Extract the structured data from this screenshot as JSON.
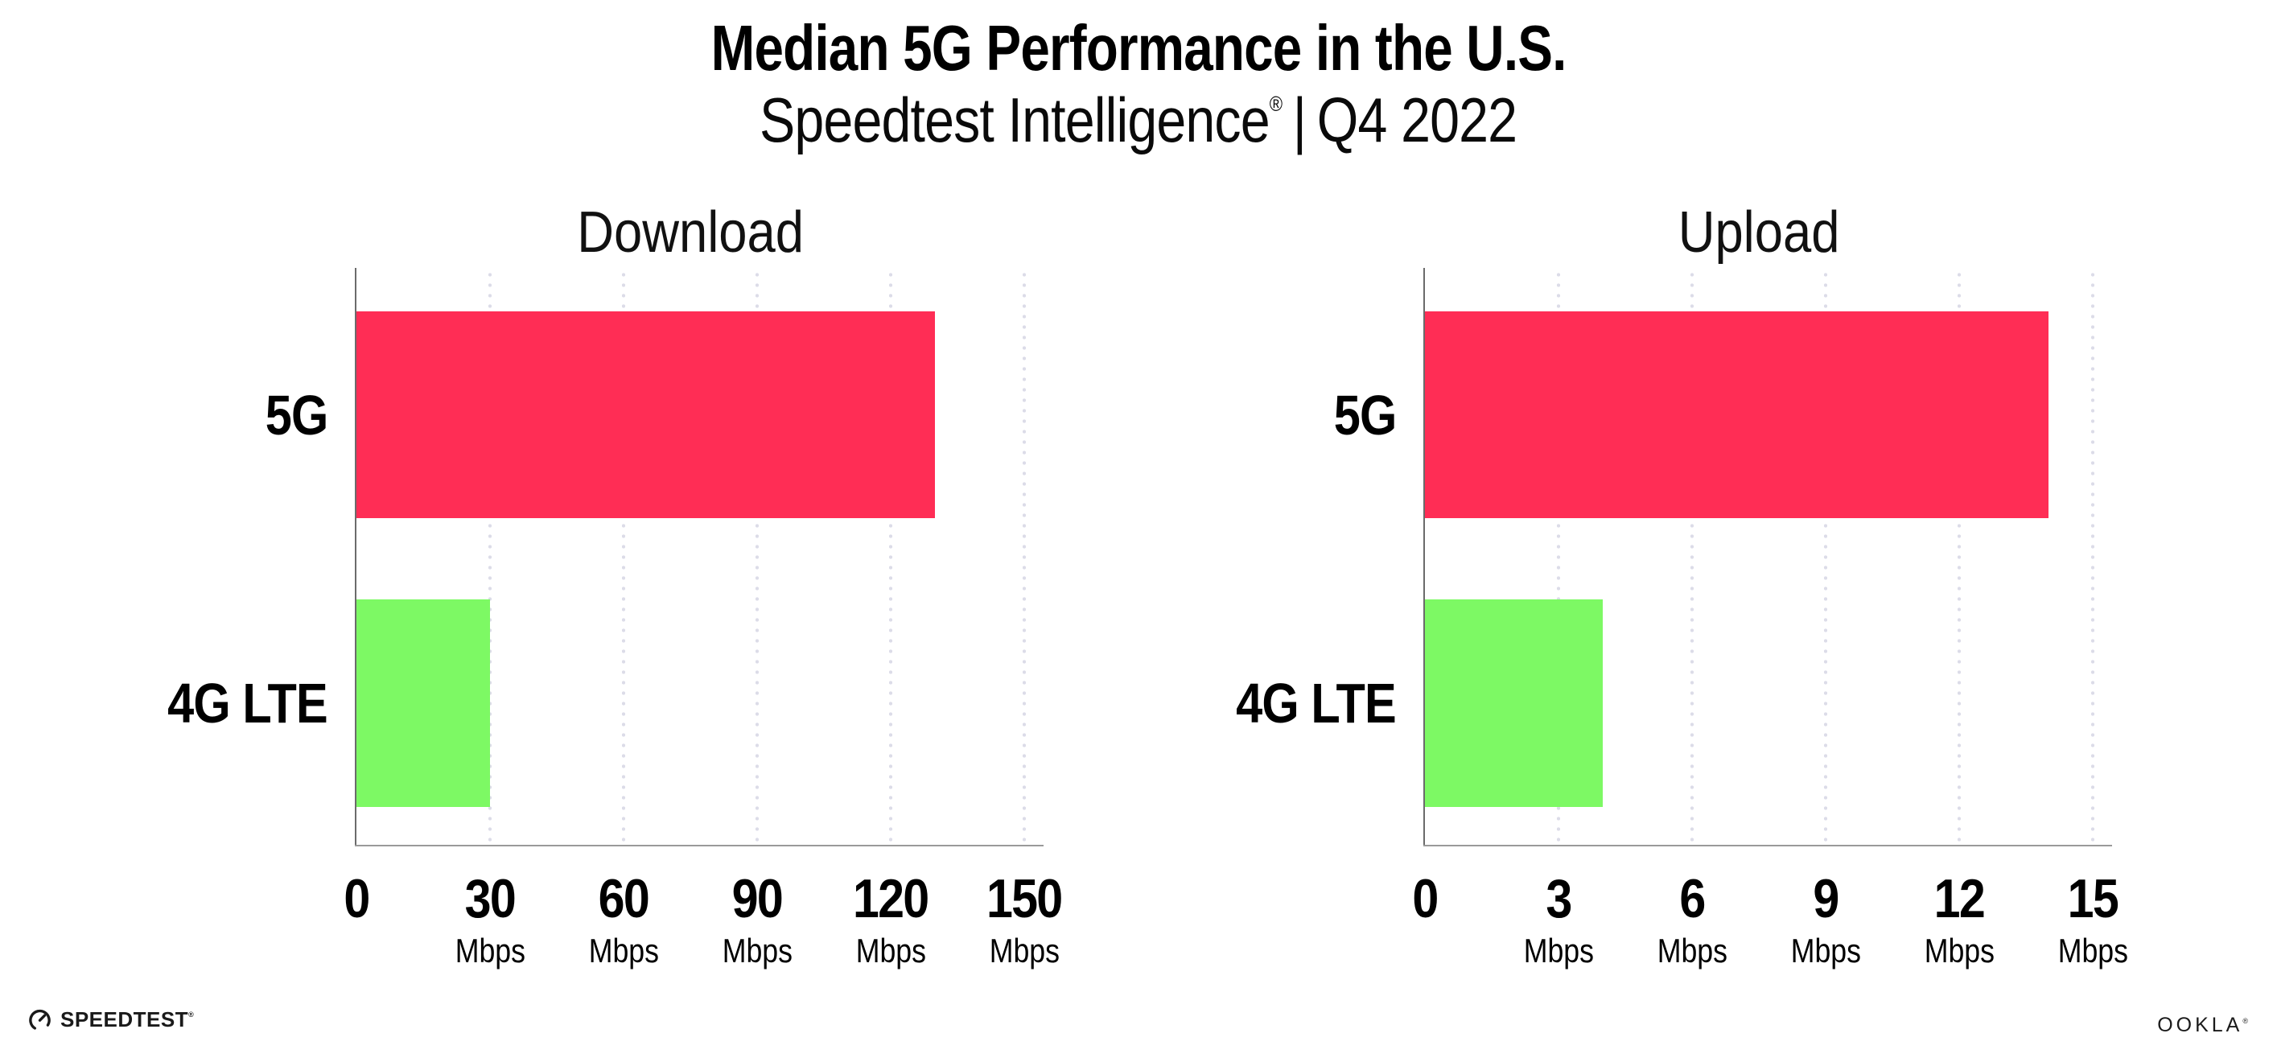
{
  "page": {
    "background": "#ffffff"
  },
  "header": {
    "title": "Median 5G Performance in the U.S.",
    "subtitle_brand": "Speedtest Intelligence",
    "subtitle_reg": "®",
    "subtitle_divider": "|",
    "subtitle_period": "Q4 2022"
  },
  "footer": {
    "speedtest_label": "SPEEDTEST",
    "speedtest_reg": "®",
    "ookla_label": "OOKLA",
    "ookla_reg": "®"
  },
  "colors": {
    "bar_5g": "#FF2D55",
    "bar_4g_lte": "#7DF964",
    "x_axis_line": "#9A9A9A",
    "y_axis_line": "#6B6B6B",
    "gridline_dots": "#DCDCE8",
    "text": "#000000"
  },
  "chart_data": [
    {
      "type": "bar",
      "orientation": "horizontal",
      "title": "Download",
      "categories": [
        "5G",
        "4G LTE"
      ],
      "values": [
        130,
        30
      ],
      "unit": "Mbps",
      "xlabel": "",
      "ylabel": "",
      "xlim": [
        0,
        150
      ],
      "ticks": [
        0,
        30,
        60,
        90,
        120,
        150
      ],
      "bar_colors": [
        "#FF2D55",
        "#7DF964"
      ],
      "grid": "dotted-vertical",
      "legend": "none"
    },
    {
      "type": "bar",
      "orientation": "horizontal",
      "title": "Upload",
      "categories": [
        "5G",
        "4G LTE"
      ],
      "values": [
        14,
        4
      ],
      "unit": "Mbps",
      "xlabel": "",
      "ylabel": "",
      "xlim": [
        0,
        15
      ],
      "ticks": [
        0,
        3,
        6,
        9,
        12,
        15
      ],
      "bar_colors": [
        "#FF2D55",
        "#7DF964"
      ],
      "grid": "dotted-vertical",
      "legend": "none"
    }
  ]
}
